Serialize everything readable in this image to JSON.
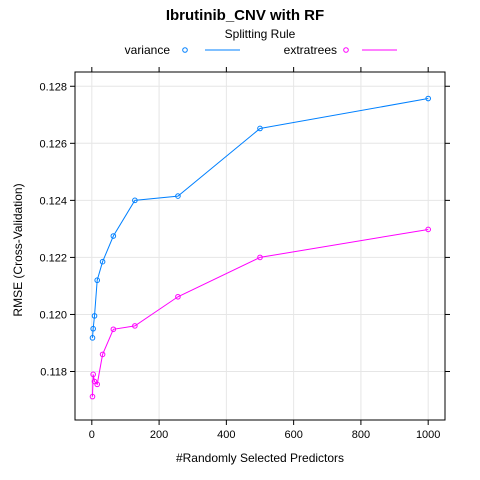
{
  "chart_data": {
    "type": "line",
    "title": "Ibrutinib_CNV with RF",
    "xlabel": "#Randomly Selected Predictors",
    "ylabel": "RMSE (Cross-Validation)",
    "xlim": [
      -50,
      1050
    ],
    "ylim": [
      0.1163,
      0.1285
    ],
    "xticks": [
      0,
      200,
      400,
      600,
      800,
      1000
    ],
    "yticks": [
      0.118,
      0.12,
      0.122,
      0.124,
      0.126,
      0.128
    ],
    "ytick_labels": [
      "0.118",
      "0.120",
      "0.122",
      "0.124",
      "0.126",
      "0.128"
    ],
    "grid": true,
    "legend": {
      "title": "Splitting Rule",
      "position": "top"
    },
    "series": [
      {
        "name": "variance",
        "color": "#0080ff",
        "x": [
          2,
          4,
          8,
          16,
          32,
          64,
          128,
          256,
          500,
          1000
        ],
        "y": [
          0.11918,
          0.1195,
          0.11995,
          0.1212,
          0.12185,
          0.12275,
          0.124,
          0.12415,
          0.12652,
          0.12757
        ]
      },
      {
        "name": "extratrees",
        "color": "#ff00ff",
        "x": [
          2,
          4,
          8,
          16,
          32,
          64,
          128,
          256,
          500,
          1000
        ],
        "y": [
          0.11712,
          0.1179,
          0.11765,
          0.11755,
          0.1186,
          0.11948,
          0.1196,
          0.12062,
          0.122,
          0.12298
        ]
      }
    ]
  }
}
